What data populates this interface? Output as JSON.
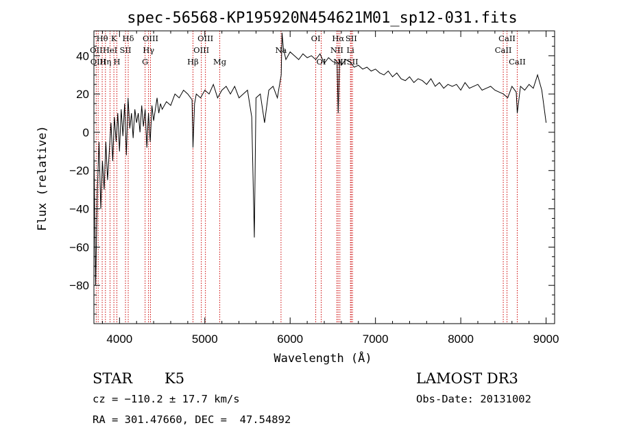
{
  "chart_data": {
    "type": "line",
    "title": "spec-56568-KP195920N454621M01_sp12-031.fits",
    "xlabel": "Wavelength (Å)",
    "ylabel": "Flux (relative)",
    "xlim": [
      3700,
      9100
    ],
    "ylim": [
      -100,
      53
    ],
    "xticks": [
      4000,
      5000,
      6000,
      7000,
      8000,
      9000
    ],
    "xtick_labels": [
      "4000",
      "5000",
      "6000",
      "7000",
      "8000",
      "9000"
    ],
    "yticks": [
      -80,
      -60,
      -40,
      -20,
      0,
      20,
      40
    ],
    "ytick_labels": [
      "−80",
      "−60",
      "−40",
      "−20",
      "0",
      "20",
      "40"
    ],
    "line_color": "#000000",
    "marker_color": "#cc0000",
    "series": [
      {
        "name": "flux",
        "x": [
          3700,
          3720,
          3740,
          3760,
          3780,
          3800,
          3820,
          3840,
          3860,
          3880,
          3900,
          3920,
          3940,
          3960,
          3980,
          4000,
          4020,
          4040,
          4060,
          4080,
          4100,
          4120,
          4140,
          4160,
          4180,
          4200,
          4220,
          4240,
          4260,
          4280,
          4300,
          4320,
          4340,
          4360,
          4380,
          4400,
          4420,
          4440,
          4460,
          4480,
          4500,
          4550,
          4600,
          4650,
          4700,
          4750,
          4800,
          4850,
          4861,
          4880,
          4900,
          4950,
          5000,
          5050,
          5100,
          5150,
          5200,
          5250,
          5300,
          5350,
          5400,
          5450,
          5500,
          5550,
          5580,
          5600,
          5650,
          5700,
          5750,
          5800,
          5850,
          5880,
          5895,
          5905,
          5920,
          5950,
          6000,
          6050,
          6100,
          6150,
          6200,
          6250,
          6300,
          6350,
          6400,
          6450,
          6500,
          6550,
          6563,
          6580,
          6600,
          6650,
          6700,
          6750,
          6800,
          6850,
          6900,
          6950,
          7000,
          7050,
          7100,
          7150,
          7200,
          7250,
          7300,
          7350,
          7400,
          7450,
          7500,
          7550,
          7600,
          7650,
          7700,
          7750,
          7800,
          7850,
          7900,
          7950,
          8000,
          8050,
          8100,
          8150,
          8200,
          8250,
          8300,
          8350,
          8400,
          8450,
          8500,
          8550,
          8600,
          8650,
          8662,
          8700,
          8750,
          8800,
          8850,
          8900,
          8950,
          9000
        ],
        "y": [
          -10,
          -80,
          -30,
          -5,
          -40,
          -15,
          -30,
          -5,
          -25,
          -10,
          5,
          -15,
          8,
          -5,
          10,
          -10,
          12,
          -2,
          15,
          -12,
          18,
          2,
          10,
          -3,
          12,
          5,
          10,
          0,
          14,
          3,
          12,
          -8,
          10,
          -5,
          14,
          6,
          12,
          18,
          10,
          15,
          12,
          16,
          14,
          20,
          18,
          22,
          20,
          17,
          -8,
          15,
          20,
          18,
          22,
          20,
          25,
          18,
          22,
          24,
          20,
          24,
          18,
          20,
          22,
          8,
          -55,
          18,
          20,
          5,
          22,
          24,
          18,
          26,
          30,
          52,
          44,
          38,
          42,
          40,
          38,
          41,
          39,
          40,
          38,
          41,
          36,
          39,
          37,
          36,
          10,
          38,
          35,
          38,
          37,
          34,
          35,
          33,
          34,
          32,
          33,
          31,
          30,
          32,
          29,
          31,
          28,
          27,
          29,
          26,
          28,
          27,
          25,
          28,
          24,
          26,
          23,
          25,
          24,
          25,
          22,
          26,
          23,
          24,
          25,
          22,
          23,
          24,
          22,
          21,
          20,
          18,
          24,
          21,
          10,
          24,
          22,
          25,
          23,
          30,
          22,
          5
        ]
      }
    ],
    "lines": [
      {
        "w": 3797,
        "label": "Hθ",
        "row": 0
      },
      {
        "w": 3727,
        "label": "OII",
        "row": 1
      },
      {
        "w": 3750,
        "label": "OIII",
        "row": 2
      },
      {
        "w": 3835,
        "label": "Hη",
        "row": 2
      },
      {
        "w": 3889,
        "label": "HeI",
        "row": 1
      },
      {
        "w": 3934,
        "label": "K",
        "row": 0
      },
      {
        "w": 3969,
        "label": "H",
        "row": 2
      },
      {
        "w": 4070,
        "label": "SII",
        "row": 1
      },
      {
        "w": 4102,
        "label": "Hδ",
        "row": 0
      },
      {
        "w": 4300,
        "label": "G",
        "row": 2
      },
      {
        "w": 4340,
        "label": "Hγ",
        "row": 1
      },
      {
        "w": 4363,
        "label": "OIII",
        "row": 0
      },
      {
        "w": 4861,
        "label": "Hβ",
        "row": 2
      },
      {
        "w": 4959,
        "label": "OIII",
        "row": 1
      },
      {
        "w": 5007,
        "label": "OIII",
        "row": 0
      },
      {
        "w": 5175,
        "label": "Mg",
        "row": 2
      },
      {
        "w": 5893,
        "label": "Na",
        "row": 1
      },
      {
        "w": 6300,
        "label": "OI",
        "row": 0
      },
      {
        "w": 6364,
        "label": "OI",
        "row": 2
      },
      {
        "w": 6548,
        "label": "NII",
        "row": 1
      },
      {
        "w": 6563,
        "label": "Hα",
        "row": 0
      },
      {
        "w": 6583,
        "label": "NII",
        "row": 2
      },
      {
        "w": 6707,
        "label": "Li",
        "row": 1
      },
      {
        "w": 6716,
        "label": "SII",
        "row": 0
      },
      {
        "w": 6731,
        "label": "SII",
        "row": 2
      },
      {
        "w": 8498,
        "label": "CaII",
        "row": 1
      },
      {
        "w": 8542,
        "label": "CaII",
        "row": 0
      },
      {
        "w": 8662,
        "label": "CaII",
        "row": 2
      }
    ]
  },
  "info": {
    "class": "STAR",
    "subclass": "K5",
    "survey": "LAMOST DR3",
    "cz": "cz = −110.2 ± 17.7 km/s",
    "obsdate": "Obs-Date: 20131002",
    "radec": "RA = 301.47660, DEC =  47.54892"
  }
}
